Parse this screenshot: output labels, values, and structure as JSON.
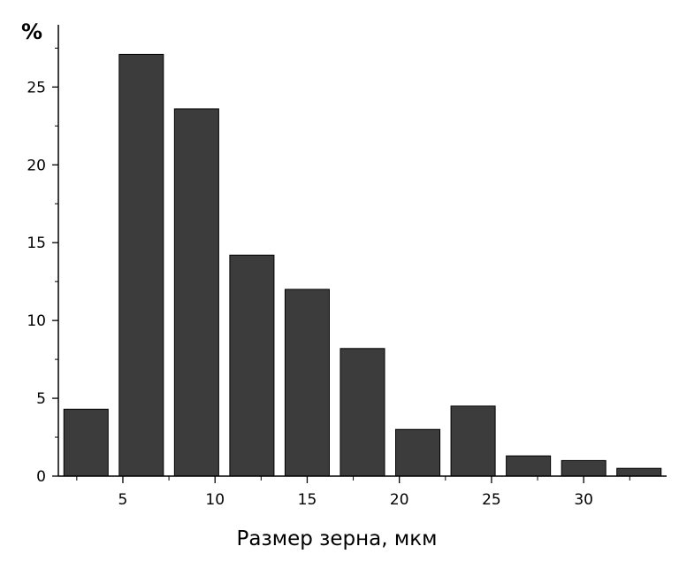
{
  "chart_data": {
    "type": "bar",
    "title": "",
    "xlabel": "Размер зерна, мкм",
    "ylabel": "%",
    "x": [
      3,
      6,
      9,
      12,
      15,
      18,
      21,
      24,
      27,
      30,
      33
    ],
    "values": [
      4.3,
      27.1,
      23.6,
      14.2,
      12.0,
      8.2,
      3.0,
      4.5,
      1.3,
      1.0,
      0.5
    ],
    "bar_width": 2.4,
    "xlim": [
      1.5,
      34.5
    ],
    "ylim": [
      0,
      29
    ],
    "x_ticks": [
      "5",
      "10",
      "15",
      "20",
      "25",
      "30"
    ],
    "y_ticks": [
      "0",
      "5",
      "10",
      "15",
      "20",
      "25"
    ],
    "grid": false,
    "bar_color": "#3c3c3c"
  }
}
